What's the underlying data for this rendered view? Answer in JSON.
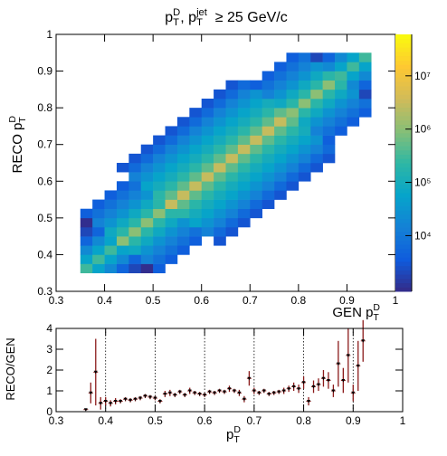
{
  "chart_data": [
    {
      "type": "heatmap",
      "title": [
        {
          "text": "p"
        },
        {
          "text": "T",
          "shift": "sub"
        },
        {
          "text": "D",
          "shift": "sup"
        },
        {
          "text": ", p"
        },
        {
          "text": "T",
          "shift": "sub"
        },
        {
          "text": "jet",
          "shift": "sup"
        },
        {
          "text": "  ≥ 25 GeV/c"
        }
      ],
      "xlabel": [
        {
          "text": "GEN p"
        },
        {
          "text": "T",
          "shift": "sub"
        },
        {
          "text": "D",
          "shift": "sup"
        }
      ],
      "ylabel": [
        {
          "text": "RECO p"
        },
        {
          "text": "T",
          "shift": "sub"
        },
        {
          "text": "D",
          "shift": "sup"
        }
      ],
      "xlim": [
        0.3,
        1
      ],
      "ylim": [
        0.3,
        1
      ],
      "xticks": [
        0.3,
        0.4,
        0.5,
        0.6,
        0.7,
        0.8,
        0.9,
        1
      ],
      "yticks": [
        0.3,
        0.4,
        0.5,
        0.6,
        0.7,
        0.8,
        0.9,
        1
      ],
      "zlim": [
        900,
        60000000
      ],
      "zlog": true,
      "zticks": [
        {
          "value": 10000,
          "label": "10⁴"
        },
        {
          "value": 100000,
          "label": "10⁵"
        },
        {
          "value": 1000000,
          "label": "10⁶"
        },
        {
          "value": 10000000,
          "label": "10⁷"
        }
      ],
      "colormap": [
        "#352a87",
        "#0f5cdd",
        "#1481d6",
        "#06a4ca",
        "#2eb7a4",
        "#87bf77",
        "#d1bb59",
        "#fec832",
        "#f9fb0e"
      ],
      "xbins": [
        0.35,
        0.375,
        0.4,
        0.425,
        0.45,
        0.475,
        0.5,
        0.525,
        0.55,
        0.575,
        0.6,
        0.625,
        0.65,
        0.675,
        0.7,
        0.725,
        0.75,
        0.775,
        0.8,
        0.825,
        0.85,
        0.875,
        0.9,
        0.925,
        0.95
      ],
      "ybins": [
        0.35,
        0.375,
        0.4,
        0.425,
        0.45,
        0.475,
        0.5,
        0.525,
        0.55,
        0.575,
        0.6,
        0.625,
        0.65,
        0.675,
        0.7,
        0.725,
        0.75,
        0.775,
        0.8,
        0.825,
        0.85,
        0.875,
        0.9,
        0.925,
        0.95
      ],
      "z": [
        [
          300000.0,
          60000.0,
          20000.0,
          5000.0,
          2000.0,
          1000.0,
          4000.0,
          0,
          0,
          0,
          0,
          0,
          0,
          0,
          0,
          0,
          0,
          0,
          0,
          0,
          0,
          0,
          0,
          0
        ],
        [
          60000.0,
          300000.0,
          60000.0,
          20000.0,
          5000.0,
          15000.0,
          8000.0,
          4000.0,
          0,
          0,
          0,
          0,
          0,
          0,
          0,
          0,
          0,
          0,
          0,
          0,
          0,
          0,
          0,
          0
        ],
        [
          20000.0,
          60000.0,
          300000.0,
          60000.0,
          80000.0,
          30000.0,
          15000.0,
          8000.0,
          4000.0,
          0,
          0,
          0,
          0,
          0,
          0,
          0,
          0,
          0,
          0,
          0,
          0,
          0,
          0,
          0
        ],
        [
          5000.0,
          20000.0,
          60000.0,
          1000000.0,
          200000.0,
          80000.0,
          30000.0,
          15000.0,
          8000.0,
          4000.0,
          0,
          3000.0,
          0,
          0,
          0,
          0,
          0,
          0,
          0,
          0,
          0,
          0,
          0,
          0
        ],
        [
          2000.0,
          5000.0,
          80000.0,
          200000.0,
          1000000.0,
          200000.0,
          80000.0,
          30000.0,
          15000.0,
          8000.0,
          15000.0,
          6000.0,
          3000.0,
          0,
          0,
          0,
          0,
          0,
          0,
          0,
          0,
          0,
          0,
          0
        ],
        [
          1000.0,
          15000.0,
          30000.0,
          80000.0,
          200000.0,
          1000000.0,
          200000.0,
          80000.0,
          30000.0,
          60000.0,
          30000.0,
          15000.0,
          6000.0,
          3000.0,
          0,
          0,
          0,
          0,
          0,
          0,
          0,
          0,
          0,
          0
        ],
        [
          4000.0,
          8000.0,
          15000.0,
          30000.0,
          80000.0,
          200000.0,
          1000000.0,
          200000.0,
          200000.0,
          100000.0,
          60000.0,
          30000.0,
          15000.0,
          6000.0,
          3000.0,
          0,
          0,
          0,
          0,
          0,
          0,
          0,
          0,
          0
        ],
        [
          0,
          4000.0,
          8000.0,
          15000.0,
          30000.0,
          80000.0,
          200000.0,
          3000000.0,
          500000.0,
          200000.0,
          100000.0,
          60000.0,
          30000.0,
          15000.0,
          6000.0,
          3000.0,
          0,
          0,
          0,
          0,
          0,
          0,
          0,
          0
        ],
        [
          0,
          0,
          4000.0,
          8000.0,
          15000.0,
          30000.0,
          200000.0,
          500000.0,
          3000000.0,
          500000.0,
          200000.0,
          100000.0,
          60000.0,
          30000.0,
          15000.0,
          6000.0,
          3000.0,
          0,
          0,
          0,
          0,
          0,
          0,
          0
        ],
        [
          0,
          0,
          0,
          4000.0,
          8000.0,
          60000.0,
          100000.0,
          200000.0,
          500000.0,
          3000000.0,
          500000.0,
          200000.0,
          100000.0,
          60000.0,
          30000.0,
          15000.0,
          6000.0,
          3000.0,
          0,
          0,
          0,
          0,
          0,
          0
        ],
        [
          0,
          0,
          0,
          0,
          15000.0,
          30000.0,
          60000.0,
          100000.0,
          200000.0,
          500000.0,
          3000000.0,
          500000.0,
          200000.0,
          100000.0,
          60000.0,
          30000.0,
          15000.0,
          6000.0,
          3000.0,
          0,
          0,
          0,
          0,
          0
        ],
        [
          0,
          0,
          0,
          3000.0,
          6000.0,
          15000.0,
          30000.0,
          60000.0,
          100000.0,
          200000.0,
          500000.0,
          3000000.0,
          500000.0,
          200000.0,
          100000.0,
          60000.0,
          30000.0,
          15000.0,
          6000.0,
          3000.0,
          0,
          0,
          0,
          0
        ],
        [
          0,
          0,
          0,
          0,
          3000.0,
          6000.0,
          15000.0,
          30000.0,
          60000.0,
          100000.0,
          200000.0,
          500000.0,
          3000000.0,
          500000.0,
          200000.0,
          100000.0,
          60000.0,
          30000.0,
          15000.0,
          6000.0,
          3000.0,
          0,
          0,
          0
        ],
        [
          0,
          0,
          0,
          0,
          0,
          3000.0,
          6000.0,
          15000.0,
          30000.0,
          60000.0,
          100000.0,
          200000.0,
          500000.0,
          3000000.0,
          500000.0,
          200000.0,
          100000.0,
          60000.0,
          30000.0,
          15000.0,
          6000.0,
          0,
          0,
          0
        ],
        [
          0,
          0,
          0,
          0,
          0,
          0,
          3000.0,
          6000.0,
          15000.0,
          30000.0,
          60000.0,
          100000.0,
          200000.0,
          500000.0,
          3000000.0,
          500000.0,
          200000.0,
          100000.0,
          60000.0,
          30000.0,
          4000.0,
          0,
          0,
          0
        ],
        [
          0,
          0,
          0,
          0,
          0,
          0,
          0,
          3000.0,
          6000.0,
          15000.0,
          30000.0,
          60000.0,
          100000.0,
          200000.0,
          500000.0,
          3000000.0,
          500000.0,
          200000.0,
          100000.0,
          15000.0,
          8000.0,
          4000.0,
          0,
          0
        ],
        [
          0,
          0,
          0,
          0,
          0,
          0,
          0,
          0,
          3000.0,
          6000.0,
          15000.0,
          30000.0,
          60000.0,
          100000.0,
          200000.0,
          500000.0,
          3000000.0,
          500000.0,
          80000.0,
          30000.0,
          15000.0,
          8000.0,
          4000.0,
          0
        ],
        [
          0,
          0,
          0,
          0,
          0,
          0,
          0,
          0,
          0,
          3000.0,
          6000.0,
          15000.0,
          30000.0,
          60000.0,
          100000.0,
          200000.0,
          500000.0,
          1000000.0,
          200000.0,
          80000.0,
          30000.0,
          15000.0,
          8000.0,
          4000.0
        ],
        [
          0,
          0,
          0,
          0,
          0,
          0,
          0,
          0,
          0,
          0,
          3000.0,
          6000.0,
          15000.0,
          30000.0,
          60000.0,
          100000.0,
          80000.0,
          200000.0,
          1000000.0,
          200000.0,
          80000.0,
          30000.0,
          15000.0,
          8000.0
        ],
        [
          0,
          0,
          0,
          0,
          0,
          0,
          0,
          0,
          0,
          0,
          0,
          3000.0,
          6000.0,
          15000.0,
          30000.0,
          15000.0,
          30000.0,
          80000.0,
          200000.0,
          1000000.0,
          200000.0,
          80000.0,
          30000.0,
          2000.0
        ],
        [
          0,
          0,
          0,
          0,
          0,
          0,
          0,
          0,
          0,
          0,
          0,
          0,
          3000.0,
          6000.0,
          4000.0,
          8000.0,
          15000.0,
          30000.0,
          80000.0,
          200000.0,
          1000000.0,
          200000.0,
          20000.0,
          5000.0
        ],
        [
          0,
          0,
          0,
          0,
          0,
          0,
          0,
          0,
          0,
          0,
          0,
          0,
          0,
          0,
          0,
          4000.0,
          8000.0,
          15000.0,
          30000.0,
          80000.0,
          200000.0,
          300000.0,
          60000.0,
          20000.0
        ],
        [
          0,
          0,
          0,
          0,
          0,
          0,
          0,
          0,
          0,
          0,
          0,
          0,
          0,
          0,
          0,
          0,
          4000.0,
          8000.0,
          15000.0,
          30000.0,
          20000.0,
          60000.0,
          300000.0,
          60000.0
        ],
        [
          0,
          0,
          0,
          0,
          0,
          0,
          0,
          0,
          0,
          0,
          0,
          0,
          0,
          0,
          0,
          0,
          0,
          4000.0,
          8000.0,
          2000.0,
          5000.0,
          20000.0,
          60000.0,
          300000.0
        ]
      ]
    },
    {
      "type": "errorbar",
      "xlabel": [
        {
          "text": "p"
        },
        {
          "text": "T",
          "shift": "sub"
        },
        {
          "text": "D",
          "shift": "sup"
        }
      ],
      "ylabel": [
        {
          "text": "RECO/GEN"
        }
      ],
      "xlim": [
        0.3,
        1
      ],
      "ylim": [
        0,
        4
      ],
      "xticks": [
        0.3,
        0.4,
        0.5,
        0.6,
        0.7,
        0.8,
        0.9,
        1
      ],
      "yticks": [
        0,
        1,
        2,
        3,
        4
      ],
      "xgrid": true,
      "color": "#8b1a1a",
      "marker_color": "#000000",
      "x": [
        0.36,
        0.37,
        0.38,
        0.39,
        0.4,
        0.41,
        0.42,
        0.43,
        0.44,
        0.45,
        0.46,
        0.47,
        0.48,
        0.49,
        0.5,
        0.51,
        0.52,
        0.53,
        0.54,
        0.55,
        0.56,
        0.57,
        0.58,
        0.59,
        0.6,
        0.61,
        0.62,
        0.63,
        0.64,
        0.65,
        0.66,
        0.67,
        0.68,
        0.69,
        0.7,
        0.71,
        0.72,
        0.73,
        0.74,
        0.75,
        0.76,
        0.77,
        0.78,
        0.79,
        0.8,
        0.81,
        0.82,
        0.83,
        0.84,
        0.85,
        0.86,
        0.87,
        0.88,
        0.89,
        0.9,
        0.91,
        0.92
      ],
      "values": [
        0.1,
        0.9,
        1.9,
        0.4,
        0.5,
        0.4,
        0.5,
        0.5,
        0.6,
        0.55,
        0.6,
        0.65,
        0.75,
        0.7,
        0.65,
        0.5,
        0.85,
        0.9,
        0.8,
        0.95,
        0.8,
        1.0,
        0.9,
        0.85,
        0.8,
        0.95,
        0.9,
        1.0,
        0.95,
        1.1,
        1.0,
        0.9,
        0.6,
        1.6,
        1.0,
        0.9,
        1.0,
        0.85,
        0.9,
        0.95,
        1.0,
        1.1,
        1.2,
        1.1,
        1.4,
        0.5,
        1.2,
        1.3,
        1.6,
        1.5,
        1.0,
        2.3,
        1.5,
        2.7,
        0.9,
        2.2,
        3.4
      ],
      "errors": [
        0.05,
        0.5,
        1.6,
        0.3,
        0.2,
        0.15,
        0.15,
        0.1,
        0.1,
        0.1,
        0.1,
        0.1,
        0.1,
        0.1,
        0.1,
        0.1,
        0.15,
        0.15,
        0.1,
        0.1,
        0.1,
        0.15,
        0.1,
        0.1,
        0.1,
        0.1,
        0.1,
        0.1,
        0.1,
        0.15,
        0.1,
        0.15,
        0.15,
        0.35,
        0.15,
        0.1,
        0.1,
        0.1,
        0.1,
        0.1,
        0.15,
        0.15,
        0.2,
        0.2,
        0.3,
        0.2,
        0.3,
        0.3,
        0.4,
        0.4,
        0.3,
        1.1,
        0.6,
        1.3,
        0.4,
        1.2,
        1.0
      ]
    }
  ]
}
